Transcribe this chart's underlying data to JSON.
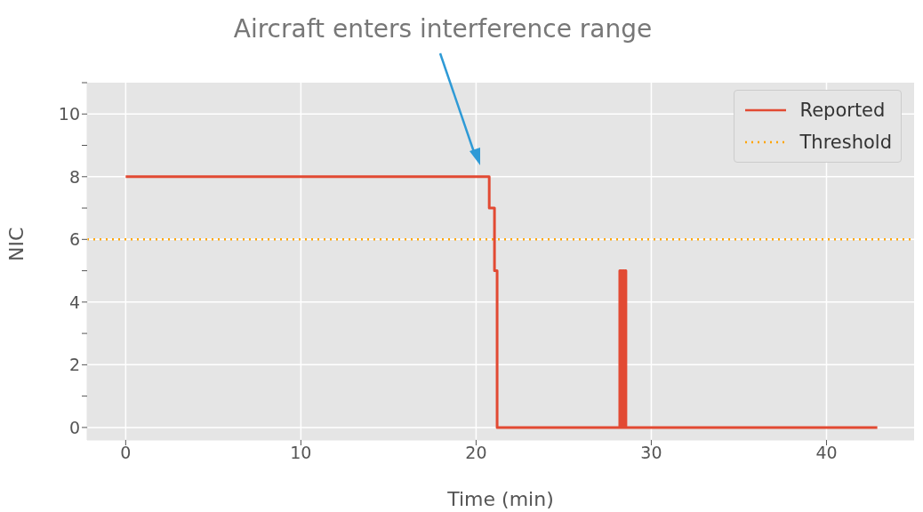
{
  "chart_data": {
    "type": "step",
    "xlabel": "Time (min)",
    "ylabel": "NIC",
    "annotations": [
      "Aircraft enters interference range"
    ],
    "series": [
      {
        "name": "Reported",
        "color": "#e24a33",
        "x": [
          0,
          20.75,
          21.05,
          21.2,
          28.2,
          28.25,
          28.3,
          28.35,
          28.4,
          28.45,
          28.5,
          28.55,
          28.6,
          42.9
        ],
        "values": [
          8,
          7,
          5,
          0,
          5,
          0,
          5,
          0,
          5,
          0,
          5,
          0,
          0,
          0
        ]
      }
    ],
    "ref_lines": [
      {
        "axis": "y",
        "value": 6,
        "label": "Threshold",
        "color": "#ffa500",
        "line_style": "dotted"
      }
    ],
    "xlim": [
      -2.2,
      45
    ],
    "xticks": [
      0,
      10,
      20,
      30,
      40
    ],
    "ylim": [
      -0.4,
      11
    ],
    "yticks": [
      0,
      {
        "value": 1,
        "label": null
      },
      2,
      {
        "value": 3,
        "label": null
      },
      4,
      {
        "value": 5,
        "label": null
      },
      6,
      {
        "value": 7,
        "label": null
      },
      8,
      {
        "value": 9,
        "label": null
      },
      10,
      {
        "value": 11,
        "label": null
      }
    ],
    "grid": true,
    "legend": "top right"
  }
}
